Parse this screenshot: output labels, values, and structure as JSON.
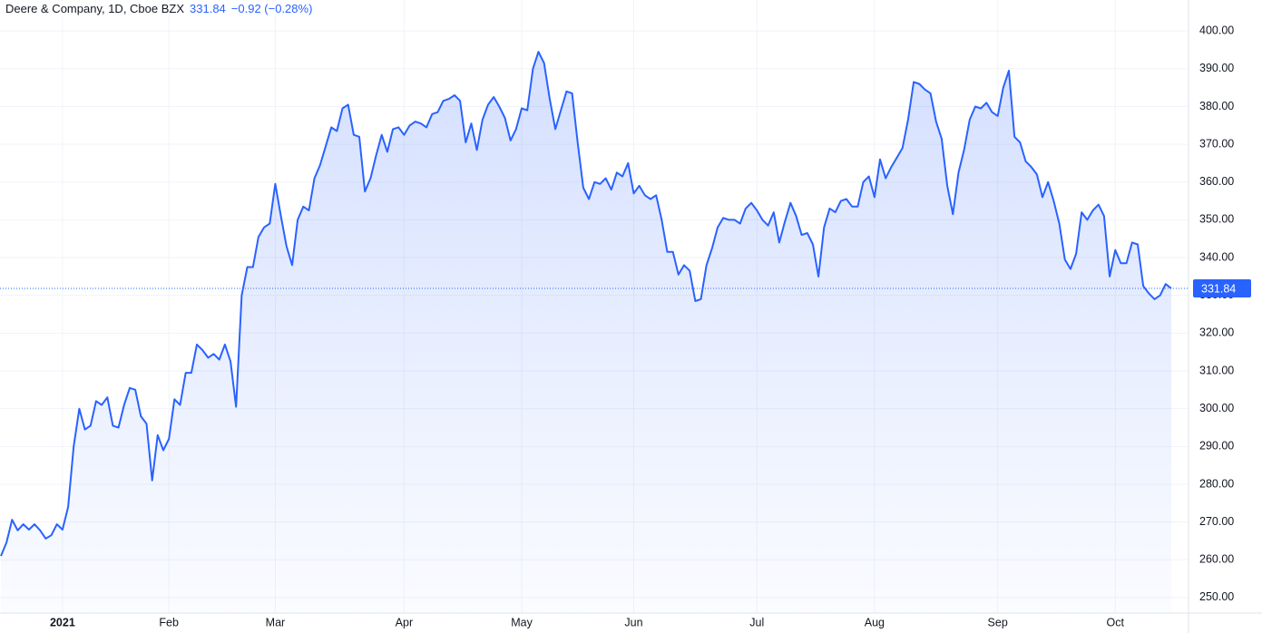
{
  "chart_data": {
    "type": "area",
    "title": "Deere & Company, 1D, Cboe BZX",
    "last_price": 331.84,
    "change": "−0.92 (−0.28%)",
    "color": "#2962ff",
    "grid": true,
    "ylim": [
      245.9,
      408.2
    ],
    "yticks": [
      {
        "value": 250,
        "label": "250.00"
      },
      {
        "value": 260,
        "label": "260.00"
      },
      {
        "value": 270,
        "label": "270.00"
      },
      {
        "value": 280,
        "label": "280.00"
      },
      {
        "value": 290,
        "label": "290.00"
      },
      {
        "value": 300,
        "label": "300.00"
      },
      {
        "value": 310,
        "label": "310.00"
      },
      {
        "value": 320,
        "label": "320.00"
      },
      {
        "value": 330,
        "label": "330.00"
      },
      {
        "value": 340,
        "label": "340.00"
      },
      {
        "value": 350,
        "label": "350.00"
      },
      {
        "value": 360,
        "label": "360.00"
      },
      {
        "value": 370,
        "label": "370.00"
      },
      {
        "value": 380,
        "label": "380.00"
      },
      {
        "value": 390,
        "label": "390.00"
      },
      {
        "value": 400,
        "label": "400.00"
      }
    ],
    "categories": [
      null,
      null,
      null,
      null,
      null,
      null,
      null,
      null,
      null,
      null,
      null,
      "2021",
      null,
      null,
      null,
      null,
      null,
      null,
      null,
      null,
      null,
      null,
      null,
      null,
      null,
      null,
      null,
      null,
      null,
      null,
      "Feb",
      null,
      null,
      null,
      null,
      null,
      null,
      null,
      null,
      null,
      null,
      null,
      null,
      null,
      null,
      null,
      null,
      null,
      null,
      "Mar",
      null,
      null,
      null,
      null,
      null,
      null,
      null,
      null,
      null,
      null,
      null,
      null,
      null,
      null,
      null,
      null,
      null,
      null,
      null,
      null,
      null,
      null,
      "Apr",
      null,
      null,
      null,
      null,
      null,
      null,
      null,
      null,
      null,
      null,
      null,
      null,
      null,
      null,
      null,
      null,
      null,
      null,
      null,
      null,
      "May",
      null,
      null,
      null,
      null,
      null,
      null,
      null,
      null,
      null,
      null,
      null,
      null,
      null,
      null,
      null,
      null,
      null,
      null,
      null,
      "Jun",
      null,
      null,
      null,
      null,
      null,
      null,
      null,
      null,
      null,
      null,
      null,
      null,
      null,
      null,
      null,
      null,
      null,
      null,
      null,
      null,
      null,
      "Jul",
      null,
      null,
      null,
      null,
      null,
      null,
      null,
      null,
      null,
      null,
      null,
      null,
      null,
      null,
      null,
      null,
      null,
      null,
      null,
      null,
      "Aug",
      null,
      null,
      null,
      null,
      null,
      null,
      null,
      null,
      null,
      null,
      null,
      null,
      null,
      null,
      null,
      null,
      null,
      null,
      null,
      null,
      null,
      "Sep",
      null,
      null,
      null,
      null,
      null,
      null,
      null,
      null,
      null,
      null,
      null,
      null,
      null,
      null,
      null,
      null,
      null,
      null,
      null,
      null,
      "Oct",
      null,
      null,
      null,
      null,
      null,
      null,
      null,
      null,
      null,
      null
    ],
    "values": [
      261,
      264.6,
      270.6,
      267.8,
      269.4,
      268,
      269.4,
      267.8,
      265.6,
      266.5,
      269.4,
      268,
      274,
      290,
      300,
      294.5,
      295.5,
      302,
      301,
      303,
      295.5,
      295,
      301,
      305.5,
      305,
      298,
      296,
      281,
      293,
      289,
      292,
      302.5,
      301,
      309.5,
      309.5,
      317,
      315.5,
      313.5,
      314.5,
      313,
      317,
      312.5,
      300.5,
      330,
      337.5,
      337.5,
      345.5,
      348,
      349,
      359.5,
      351,
      343,
      338,
      350,
      353.5,
      352.5,
      361,
      364.5,
      369.5,
      374.5,
      373.5,
      379.5,
      380.5,
      372.5,
      372,
      357.5,
      361,
      367,
      372.5,
      368,
      374,
      374.5,
      372.5,
      375,
      376,
      375.5,
      374.5,
      378,
      378.5,
      381.5,
      382,
      383,
      381.5,
      370.5,
      375.5,
      368.5,
      376.5,
      380.5,
      382.5,
      380,
      377,
      371,
      374,
      379.5,
      379,
      390,
      394.5,
      391.5,
      382,
      374,
      379,
      384,
      383.5,
      370.5,
      358.5,
      355.5,
      360,
      359.5,
      361,
      358,
      362.5,
      361.5,
      365,
      357,
      359,
      356.5,
      355.5,
      356.5,
      350,
      341.5,
      341.5,
      335.5,
      338,
      336.5,
      328.5,
      329,
      338,
      342.5,
      348,
      350.5,
      350,
      350,
      349,
      353,
      354.5,
      352.5,
      350,
      348.5,
      352,
      344,
      349.5,
      354.5,
      351,
      346,
      346.5,
      343.5,
      335,
      348,
      353,
      352,
      355,
      355.5,
      353.5,
      353.5,
      360,
      361.5,
      356,
      366,
      361,
      364,
      366.5,
      369,
      376.5,
      386.5,
      386,
      384.5,
      383.5,
      376,
      371.5,
      359,
      351.5,
      362.5,
      368.5,
      376.5,
      380,
      379.5,
      381,
      378.5,
      377.5,
      385,
      389.5,
      372,
      370.5,
      365.5,
      364,
      362,
      356,
      360,
      355,
      349,
      339.5,
      337,
      341,
      352,
      350,
      352.5,
      354,
      351,
      335,
      342,
      338.5,
      338.5,
      344,
      343.5,
      332.5,
      330.5,
      329,
      330,
      333,
      331.84
    ]
  }
}
